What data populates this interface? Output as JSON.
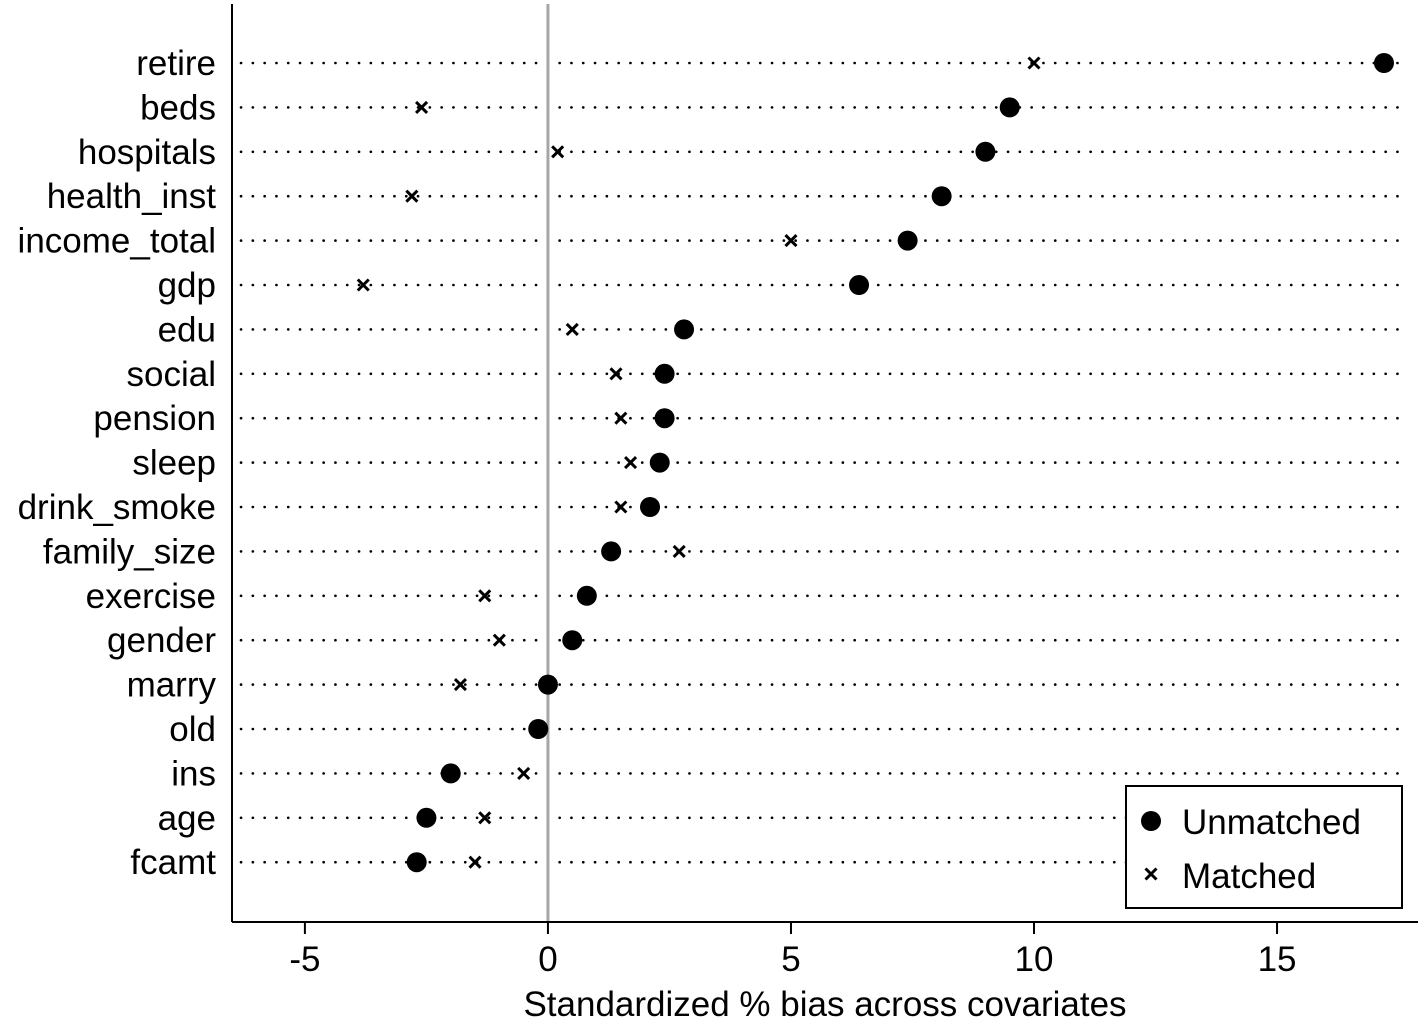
{
  "chart_data": {
    "type": "scatter",
    "xlabel": "Standardized % bias across covariates",
    "ylabel": "",
    "title": "",
    "xlim": [
      -6.5,
      17.9
    ],
    "xticks": [
      -5,
      0,
      5,
      10,
      15
    ],
    "xtick_labels": [
      "-5",
      "0",
      "5",
      "10",
      "15"
    ],
    "reference_line_x": 0,
    "grid": "dotted horizontal guide lines per covariate",
    "legend_position": "bottom-right",
    "categories": [
      "retire",
      "beds",
      "hospitals",
      "health_inst",
      "income_total",
      "gdp",
      "edu",
      "social",
      "pension",
      "sleep",
      "drink_smoke",
      "family_size",
      "exercise",
      "gender",
      "marry",
      "old",
      "ins",
      "age",
      "fcamt"
    ],
    "series": [
      {
        "name": "Unmatched",
        "marker": "filled-circle",
        "values": [
          17.2,
          9.5,
          9.0,
          8.1,
          7.4,
          6.4,
          2.8,
          2.4,
          2.4,
          2.3,
          2.1,
          1.3,
          0.8,
          0.5,
          0.0,
          -0.2,
          -2.0,
          -2.5,
          -2.7
        ]
      },
      {
        "name": "Matched",
        "marker": "x",
        "values": [
          10.0,
          -2.6,
          0.2,
          -2.8,
          5.0,
          -3.8,
          0.5,
          1.4,
          1.5,
          1.7,
          1.5,
          2.7,
          -1.3,
          -1.0,
          -1.8,
          null,
          -0.5,
          -1.3,
          -1.5
        ]
      }
    ]
  }
}
